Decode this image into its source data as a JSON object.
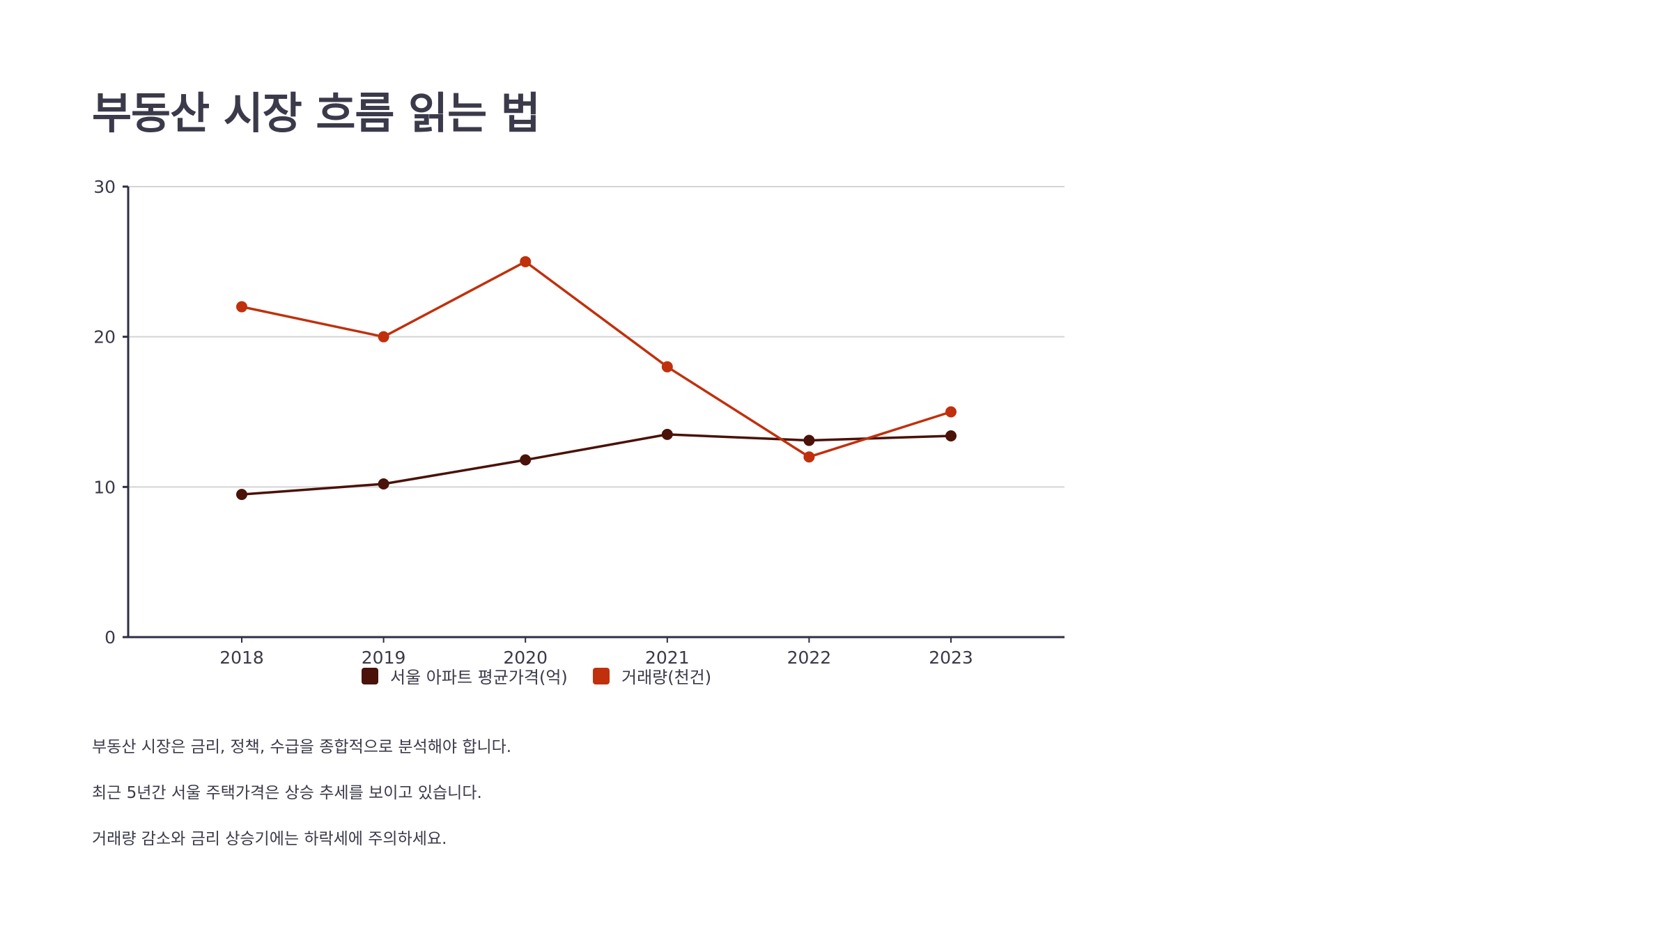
{
  "page": {
    "title": "부동산 시장 흐름 읽는 법"
  },
  "notes": [
    "부동산 시장은 금리, 정책, 수급을 종합적으로 분석해야 합니다.",
    "최근 5년간 서울 주택가격은 상승 추세를 보이고 있습니다.",
    "거래량 감소와 금리 상승기에는 하락세에 주의하세요."
  ],
  "chart_data": {
    "type": "line",
    "title": "",
    "xlabel": "",
    "ylabel": "",
    "x": [
      "2018",
      "2019",
      "2020",
      "2021",
      "2022",
      "2023"
    ],
    "ylim": [
      0,
      30
    ],
    "yticks": [
      0,
      10,
      20,
      30
    ],
    "grid": true,
    "legend_position": "bottom",
    "series": [
      {
        "name": "서울 아파트 평균가격(억)",
        "color": "#4a1208",
        "values": [
          9.5,
          10.2,
          11.8,
          13.5,
          13.1,
          13.4
        ]
      },
      {
        "name": "거래량(천건)",
        "color": "#c0300c",
        "values": [
          22,
          20,
          25,
          18,
          12,
          15
        ]
      }
    ]
  }
}
